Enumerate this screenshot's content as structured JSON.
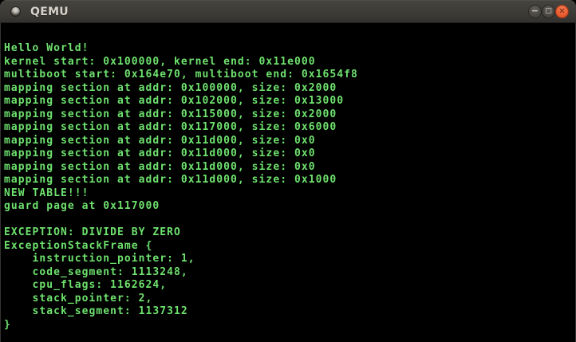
{
  "window": {
    "title": "QEMU",
    "icon": "window-orb-icon",
    "controls": [
      {
        "name": "minimize",
        "icon": "minimize-icon",
        "glyph": "−"
      },
      {
        "name": "maximize",
        "icon": "maximize-icon",
        "glyph": "□"
      },
      {
        "name": "close",
        "icon": "close-icon",
        "glyph": "✕"
      }
    ]
  },
  "colors": {
    "titlebar_top": "#45433e",
    "titlebar_bottom": "#33312d",
    "title_text": "#d8d4cb",
    "close_button": "#e85a2d",
    "terminal_bg": "#000000",
    "terminal_green": "#6ee26e"
  },
  "terminal": {
    "lines": [
      "Hello World!",
      "kernel start: 0x100000, kernel end: 0x11e000",
      "multiboot start: 0x164e70, multiboot end: 0x1654f8",
      "mapping section at addr: 0x100000, size: 0x2000",
      "mapping section at addr: 0x102000, size: 0x13000",
      "mapping section at addr: 0x115000, size: 0x2000",
      "mapping section at addr: 0x117000, size: 0x6000",
      "mapping section at addr: 0x11d000, size: 0x0",
      "mapping section at addr: 0x11d000, size: 0x0",
      "mapping section at addr: 0x11d000, size: 0x0",
      "mapping section at addr: 0x11d000, size: 0x1000",
      "NEW TABLE!!!",
      "guard page at 0x117000",
      "",
      "EXCEPTION: DIVIDE BY ZERO",
      "ExceptionStackFrame {",
      "    instruction_pointer: 1,",
      "    code_segment: 1113248,",
      "    cpu_flags: 1162624,",
      "    stack_pointer: 2,",
      "    stack_segment: 1137312",
      "}"
    ]
  }
}
